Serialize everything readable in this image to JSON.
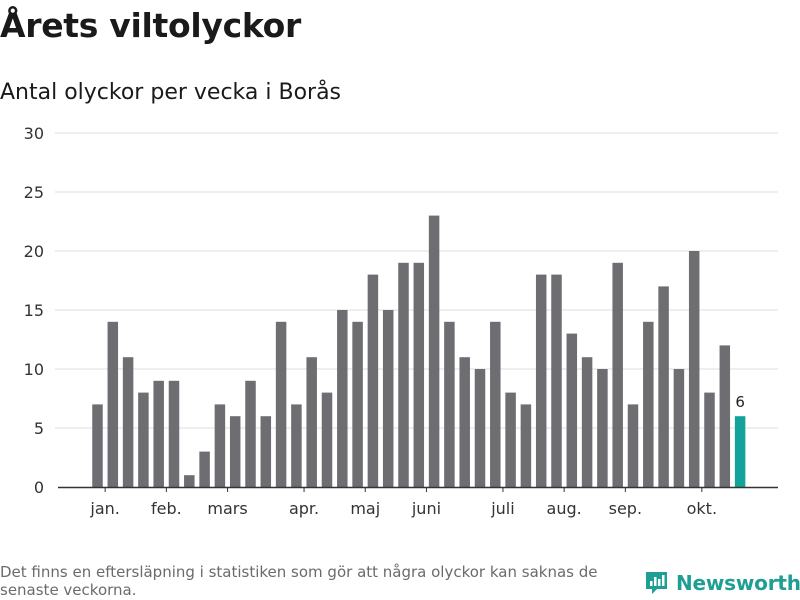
{
  "header": {
    "title": "Årets viltolyckor",
    "subtitle": "Antal olyckor per vecka i Borås"
  },
  "footer": {
    "note": "Det finns en eftersläpning i statistiken som gör att några olyckor kan saknas de senaste veckorna.",
    "brand": "Newsworthy"
  },
  "colors": {
    "bar": "#6e6d72",
    "highlight": "#14a39a",
    "grid": "#dddddd",
    "axis": "#333333",
    "brand": "#1f9e94"
  },
  "chart_data": {
    "type": "bar",
    "title": "Antal olyckor per vecka i Borås",
    "xlabel": "",
    "ylabel": "",
    "ylim": [
      0,
      30
    ],
    "yticks": [
      0,
      5,
      10,
      15,
      20,
      25,
      30
    ],
    "grid": true,
    "weeks": [
      1,
      2,
      3,
      4,
      5,
      6,
      7,
      8,
      9,
      10,
      11,
      12,
      13,
      14,
      15,
      16,
      17,
      18,
      19,
      20,
      21,
      22,
      23,
      24,
      25,
      26,
      27,
      28,
      29,
      30,
      31,
      32,
      33,
      34,
      35,
      36,
      37,
      38,
      39,
      40,
      41,
      42,
      43
    ],
    "values": [
      7,
      14,
      11,
      8,
      9,
      9,
      1,
      3,
      7,
      6,
      9,
      6,
      14,
      7,
      11,
      8,
      15,
      14,
      18,
      15,
      19,
      19,
      23,
      14,
      11,
      10,
      14,
      8,
      7,
      18,
      18,
      13,
      11,
      10,
      19,
      7,
      14,
      17,
      10,
      20,
      8,
      12,
      6
    ],
    "highlight_last": true,
    "highlight_label": "6",
    "month_labels": [
      {
        "label": "jan.",
        "week": 1.5
      },
      {
        "label": "feb.",
        "week": 5.5
      },
      {
        "label": "mars",
        "week": 9.5
      },
      {
        "label": "apr.",
        "week": 14.5
      },
      {
        "label": "maj",
        "week": 18.5
      },
      {
        "label": "juni",
        "week": 22.5
      },
      {
        "label": "juli",
        "week": 27.5
      },
      {
        "label": "aug.",
        "week": 31.5
      },
      {
        "label": "sep.",
        "week": 35.5
      },
      {
        "label": "okt.",
        "week": 40.5
      }
    ]
  }
}
